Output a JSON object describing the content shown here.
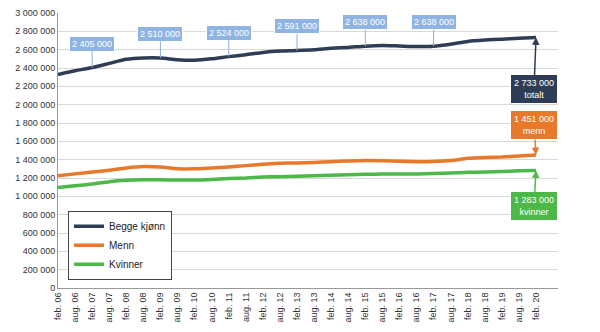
{
  "chart_data": {
    "type": "line",
    "categories": [
      "feb. 06",
      "aug. 06",
      "feb. 07",
      "aug. 07",
      "feb. 08",
      "aug. 08",
      "feb. 09",
      "aug. 09",
      "feb. 10",
      "aug. 10",
      "feb. 11",
      "aug. 11",
      "feb. 12",
      "aug. 12",
      "feb. 13",
      "aug. 13",
      "feb. 14",
      "aug. 14",
      "feb. 15",
      "aug. 15",
      "feb. 16",
      "aug. 16",
      "feb. 17",
      "aug. 17",
      "feb. 18",
      "aug. 18",
      "feb. 19",
      "aug. 19",
      "feb. 20"
    ],
    "series": [
      {
        "name": "Begge kjønn",
        "color": "#2e3d55",
        "values": [
          2330000,
          2370000,
          2405000,
          2450000,
          2495000,
          2510000,
          2510000,
          2490000,
          2485000,
          2500000,
          2524000,
          2545000,
          2570000,
          2585000,
          2591000,
          2600000,
          2615000,
          2625000,
          2638000,
          2645000,
          2640000,
          2635000,
          2638000,
          2660000,
          2690000,
          2705000,
          2715000,
          2725000,
          2733000
        ],
        "end_label": [
          "2 733 000",
          "totalt"
        ]
      },
      {
        "name": "Menn",
        "color": "#e8792a",
        "values": [
          1225000,
          1245000,
          1265000,
          1285000,
          1310000,
          1325000,
          1320000,
          1300000,
          1300000,
          1310000,
          1320000,
          1335000,
          1350000,
          1360000,
          1365000,
          1370000,
          1378000,
          1385000,
          1390000,
          1388000,
          1382000,
          1378000,
          1380000,
          1390000,
          1415000,
          1425000,
          1430000,
          1440000,
          1451000
        ],
        "end_label": [
          "1 451 000",
          "menn"
        ]
      },
      {
        "name": "Kvinner",
        "color": "#4cb848",
        "values": [
          1095000,
          1115000,
          1135000,
          1160000,
          1175000,
          1180000,
          1180000,
          1178000,
          1178000,
          1185000,
          1195000,
          1200000,
          1210000,
          1215000,
          1220000,
          1225000,
          1230000,
          1235000,
          1240000,
          1243000,
          1245000,
          1245000,
          1250000,
          1255000,
          1262000,
          1265000,
          1270000,
          1278000,
          1283000
        ],
        "end_label": [
          "1 283 000",
          "kvinner"
        ]
      }
    ],
    "annotations": [
      {
        "x": "feb. 07",
        "series": "Begge kjønn",
        "text": "2 405 000"
      },
      {
        "x": "feb. 09",
        "series": "Begge kjønn",
        "text": "2 510 000"
      },
      {
        "x": "feb. 11",
        "series": "Begge kjønn",
        "text": "2 524 000"
      },
      {
        "x": "feb. 13",
        "series": "Begge kjønn",
        "text": "2 591 000"
      },
      {
        "x": "feb. 15",
        "series": "Begge kjønn",
        "text": "2 638 000"
      },
      {
        "x": "feb. 17",
        "series": "Begge kjønn",
        "text": "2 638 000"
      }
    ],
    "ylim": [
      0,
      3000000
    ],
    "yticks": [
      0,
      {
        "value": 200000,
        "label": "200 000"
      },
      {
        "value": 400000,
        "label": "400 000"
      },
      {
        "value": 600000,
        "label": "600 000"
      },
      {
        "value": 800000,
        "label": "800 000"
      },
      {
        "value": 1000000,
        "label": "1 000 000"
      },
      {
        "value": 1200000,
        "label": "1 200 000"
      },
      {
        "value": 1400000,
        "label": "1 400 000"
      },
      {
        "value": 1600000,
        "label": "1 600 000"
      },
      {
        "value": 1800000,
        "label": "1 800 000"
      },
      {
        "value": 2000000,
        "label": "2 000 000"
      },
      {
        "value": 2200000,
        "label": "2 200 000"
      },
      {
        "value": 2400000,
        "label": "2 400 000"
      },
      {
        "value": 2600000,
        "label": "2 600 000"
      },
      {
        "value": 2800000,
        "label": "2 800 000"
      },
      {
        "value": 3000000,
        "label": "3 000 000"
      }
    ],
    "grid": true,
    "legend": "bottom-left"
  }
}
